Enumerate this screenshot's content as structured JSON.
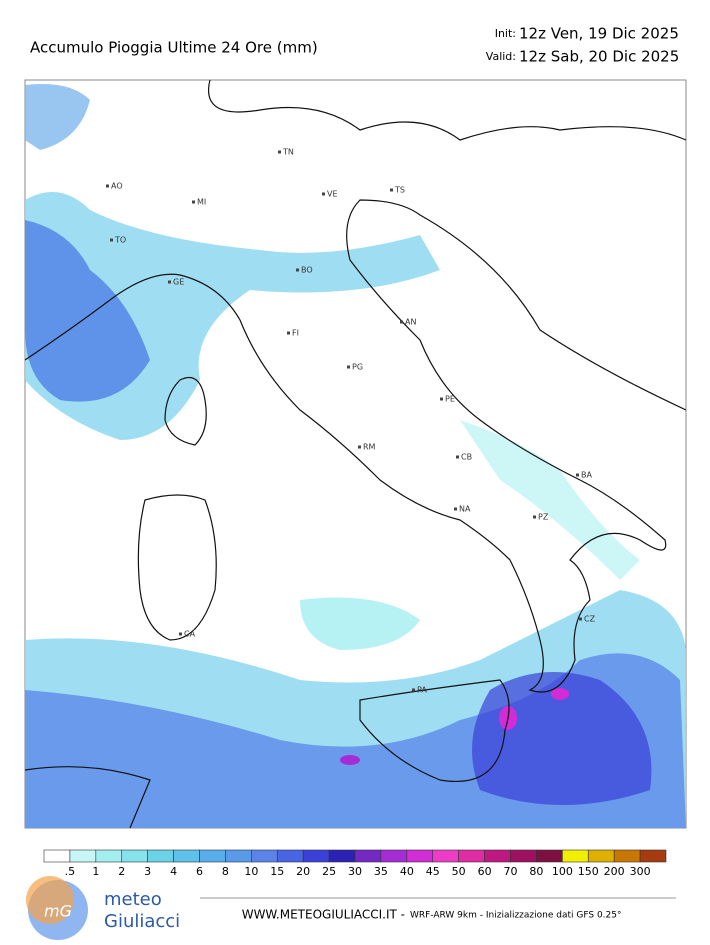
{
  "header": {
    "title": "Accumulo Pioggia Ultime 24 Ore   (mm)",
    "init_label": "Init:",
    "init_value": "12z Ven, 19 Dic 2025",
    "valid_label": "Valid:",
    "valid_value": "12z Sab, 20 Dic 2025"
  },
  "cities": [
    "AO",
    "MI",
    "TO",
    "TN",
    "VE",
    "TS",
    "BO",
    "GE",
    "FI",
    "AN",
    "PG",
    "PE",
    "RM",
    "CB",
    "BA",
    "NA",
    "PZ",
    "CZ",
    "CA",
    "PA"
  ],
  "legend": {
    "colors": [
      "#ffffff",
      "#c8f6f6",
      "#a4eef0",
      "#86e2ec",
      "#6cd2e8",
      "#5ec2ec",
      "#58aeea",
      "#5a9aea",
      "#5a84ea",
      "#4866e4",
      "#3a40d8",
      "#2a22b4",
      "#7428c4",
      "#a62cd6",
      "#d22cd6",
      "#ee3cc8",
      "#e02ca2",
      "#c01882",
      "#a01062",
      "#7c1040",
      "#f2ee00",
      "#e0b000",
      "#c87800",
      "#a83a10"
    ],
    "labels": [
      ".5",
      "1",
      "2",
      "3",
      "4",
      "6",
      "8",
      "10",
      "15",
      "20",
      "25",
      "30",
      "35",
      "40",
      "45",
      "50",
      "60",
      "70",
      "80",
      "100",
      "150",
      "200",
      "300"
    ]
  },
  "footer": {
    "logo_mark": "mG",
    "logo_top": "meteo",
    "logo_bottom": "Giuliacci",
    "site": "WWW.METEOGIULIACCI.IT -",
    "note": "WRF-ARW 9km - Inizializzazione dati GFS 0.25°"
  }
}
